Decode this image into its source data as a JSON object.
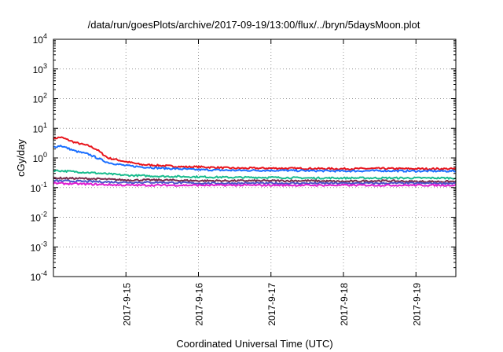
{
  "chart_data": {
    "type": "line",
    "title": "/data/run/goesPlots/archive/2017-09-19/13:00/flux/../bryn/5daysMoon.plot",
    "xlabel": "Coordinated Universal Time (UTC)",
    "ylabel": "cGy/day",
    "yscale": "log",
    "ylim": [
      0.0001,
      10000
    ],
    "xlim": [
      0,
      5.55
    ],
    "grid": true,
    "y_ticks": [
      {
        "base": "10",
        "exp": "-4"
      },
      {
        "base": "10",
        "exp": "-3"
      },
      {
        "base": "10",
        "exp": "-2"
      },
      {
        "base": "10",
        "exp": "-1"
      },
      {
        "base": "10",
        "exp": "0"
      },
      {
        "base": "10",
        "exp": "1"
      },
      {
        "base": "10",
        "exp": "2"
      },
      {
        "base": "10",
        "exp": "3"
      },
      {
        "base": "10",
        "exp": "4"
      }
    ],
    "x_ticks": [
      {
        "label": "2017-9-15",
        "x": 1
      },
      {
        "label": "2017-9-16",
        "x": 2
      },
      {
        "label": "2017-9-17",
        "x": 3
      },
      {
        "label": "2017-9-18",
        "x": 4
      },
      {
        "label": "2017-9-19",
        "x": 5
      }
    ],
    "series": [
      {
        "color": "#e8141b",
        "x": [
          0,
          0.1,
          0.3,
          0.5,
          0.6,
          0.75,
          1.0,
          1.2,
          1.5,
          1.8,
          2.0,
          2.5,
          3.0,
          3.5,
          4.0,
          4.5,
          5.0,
          5.55
        ],
        "y": [
          4.5,
          5.0,
          3.3,
          2.5,
          1.9,
          1.0,
          0.75,
          0.6,
          0.55,
          0.5,
          0.5,
          0.45,
          0.45,
          0.44,
          0.43,
          0.44,
          0.43,
          0.43
        ]
      },
      {
        "color": "#1a6fff",
        "x": [
          0,
          0.1,
          0.3,
          0.5,
          0.6,
          0.75,
          1.0,
          1.2,
          1.5,
          1.8,
          2.0,
          2.5,
          3.0,
          3.5,
          4.0,
          4.5,
          5.0,
          5.55
        ],
        "y": [
          2.3,
          2.6,
          1.7,
          1.3,
          1.0,
          0.7,
          0.55,
          0.5,
          0.45,
          0.42,
          0.4,
          0.38,
          0.38,
          0.37,
          0.36,
          0.37,
          0.36,
          0.36
        ]
      },
      {
        "color": "#1abc8e",
        "x": [
          0,
          0.5,
          1.0,
          1.5,
          2.0,
          2.5,
          3.0,
          3.5,
          4.0,
          4.5,
          5.0,
          5.55
        ],
        "y": [
          0.38,
          0.32,
          0.26,
          0.24,
          0.23,
          0.22,
          0.22,
          0.21,
          0.21,
          0.21,
          0.21,
          0.21
        ]
      },
      {
        "color": "#7a2b4a",
        "x": [
          0,
          0.5,
          1.0,
          1.5,
          2.0,
          2.5,
          3.0,
          3.5,
          4.0,
          4.5,
          5.0,
          5.55
        ],
        "y": [
          0.21,
          0.2,
          0.18,
          0.18,
          0.17,
          0.17,
          0.17,
          0.17,
          0.16,
          0.17,
          0.16,
          0.16
        ]
      },
      {
        "color": "#4a54c8",
        "x": [
          0,
          0.5,
          1.0,
          1.5,
          2.0,
          2.5,
          3.0,
          3.5,
          4.0,
          4.5,
          5.0,
          5.55
        ],
        "y": [
          0.17,
          0.16,
          0.15,
          0.15,
          0.14,
          0.14,
          0.14,
          0.14,
          0.14,
          0.14,
          0.14,
          0.14
        ]
      },
      {
        "color": "#e01dd0",
        "x": [
          0,
          0.5,
          1.0,
          1.5,
          2.0,
          2.5,
          3.0,
          3.5,
          4.0,
          4.5,
          5.0,
          5.55
        ],
        "y": [
          0.14,
          0.13,
          0.12,
          0.12,
          0.12,
          0.12,
          0.12,
          0.12,
          0.12,
          0.12,
          0.12,
          0.12
        ]
      }
    ]
  }
}
